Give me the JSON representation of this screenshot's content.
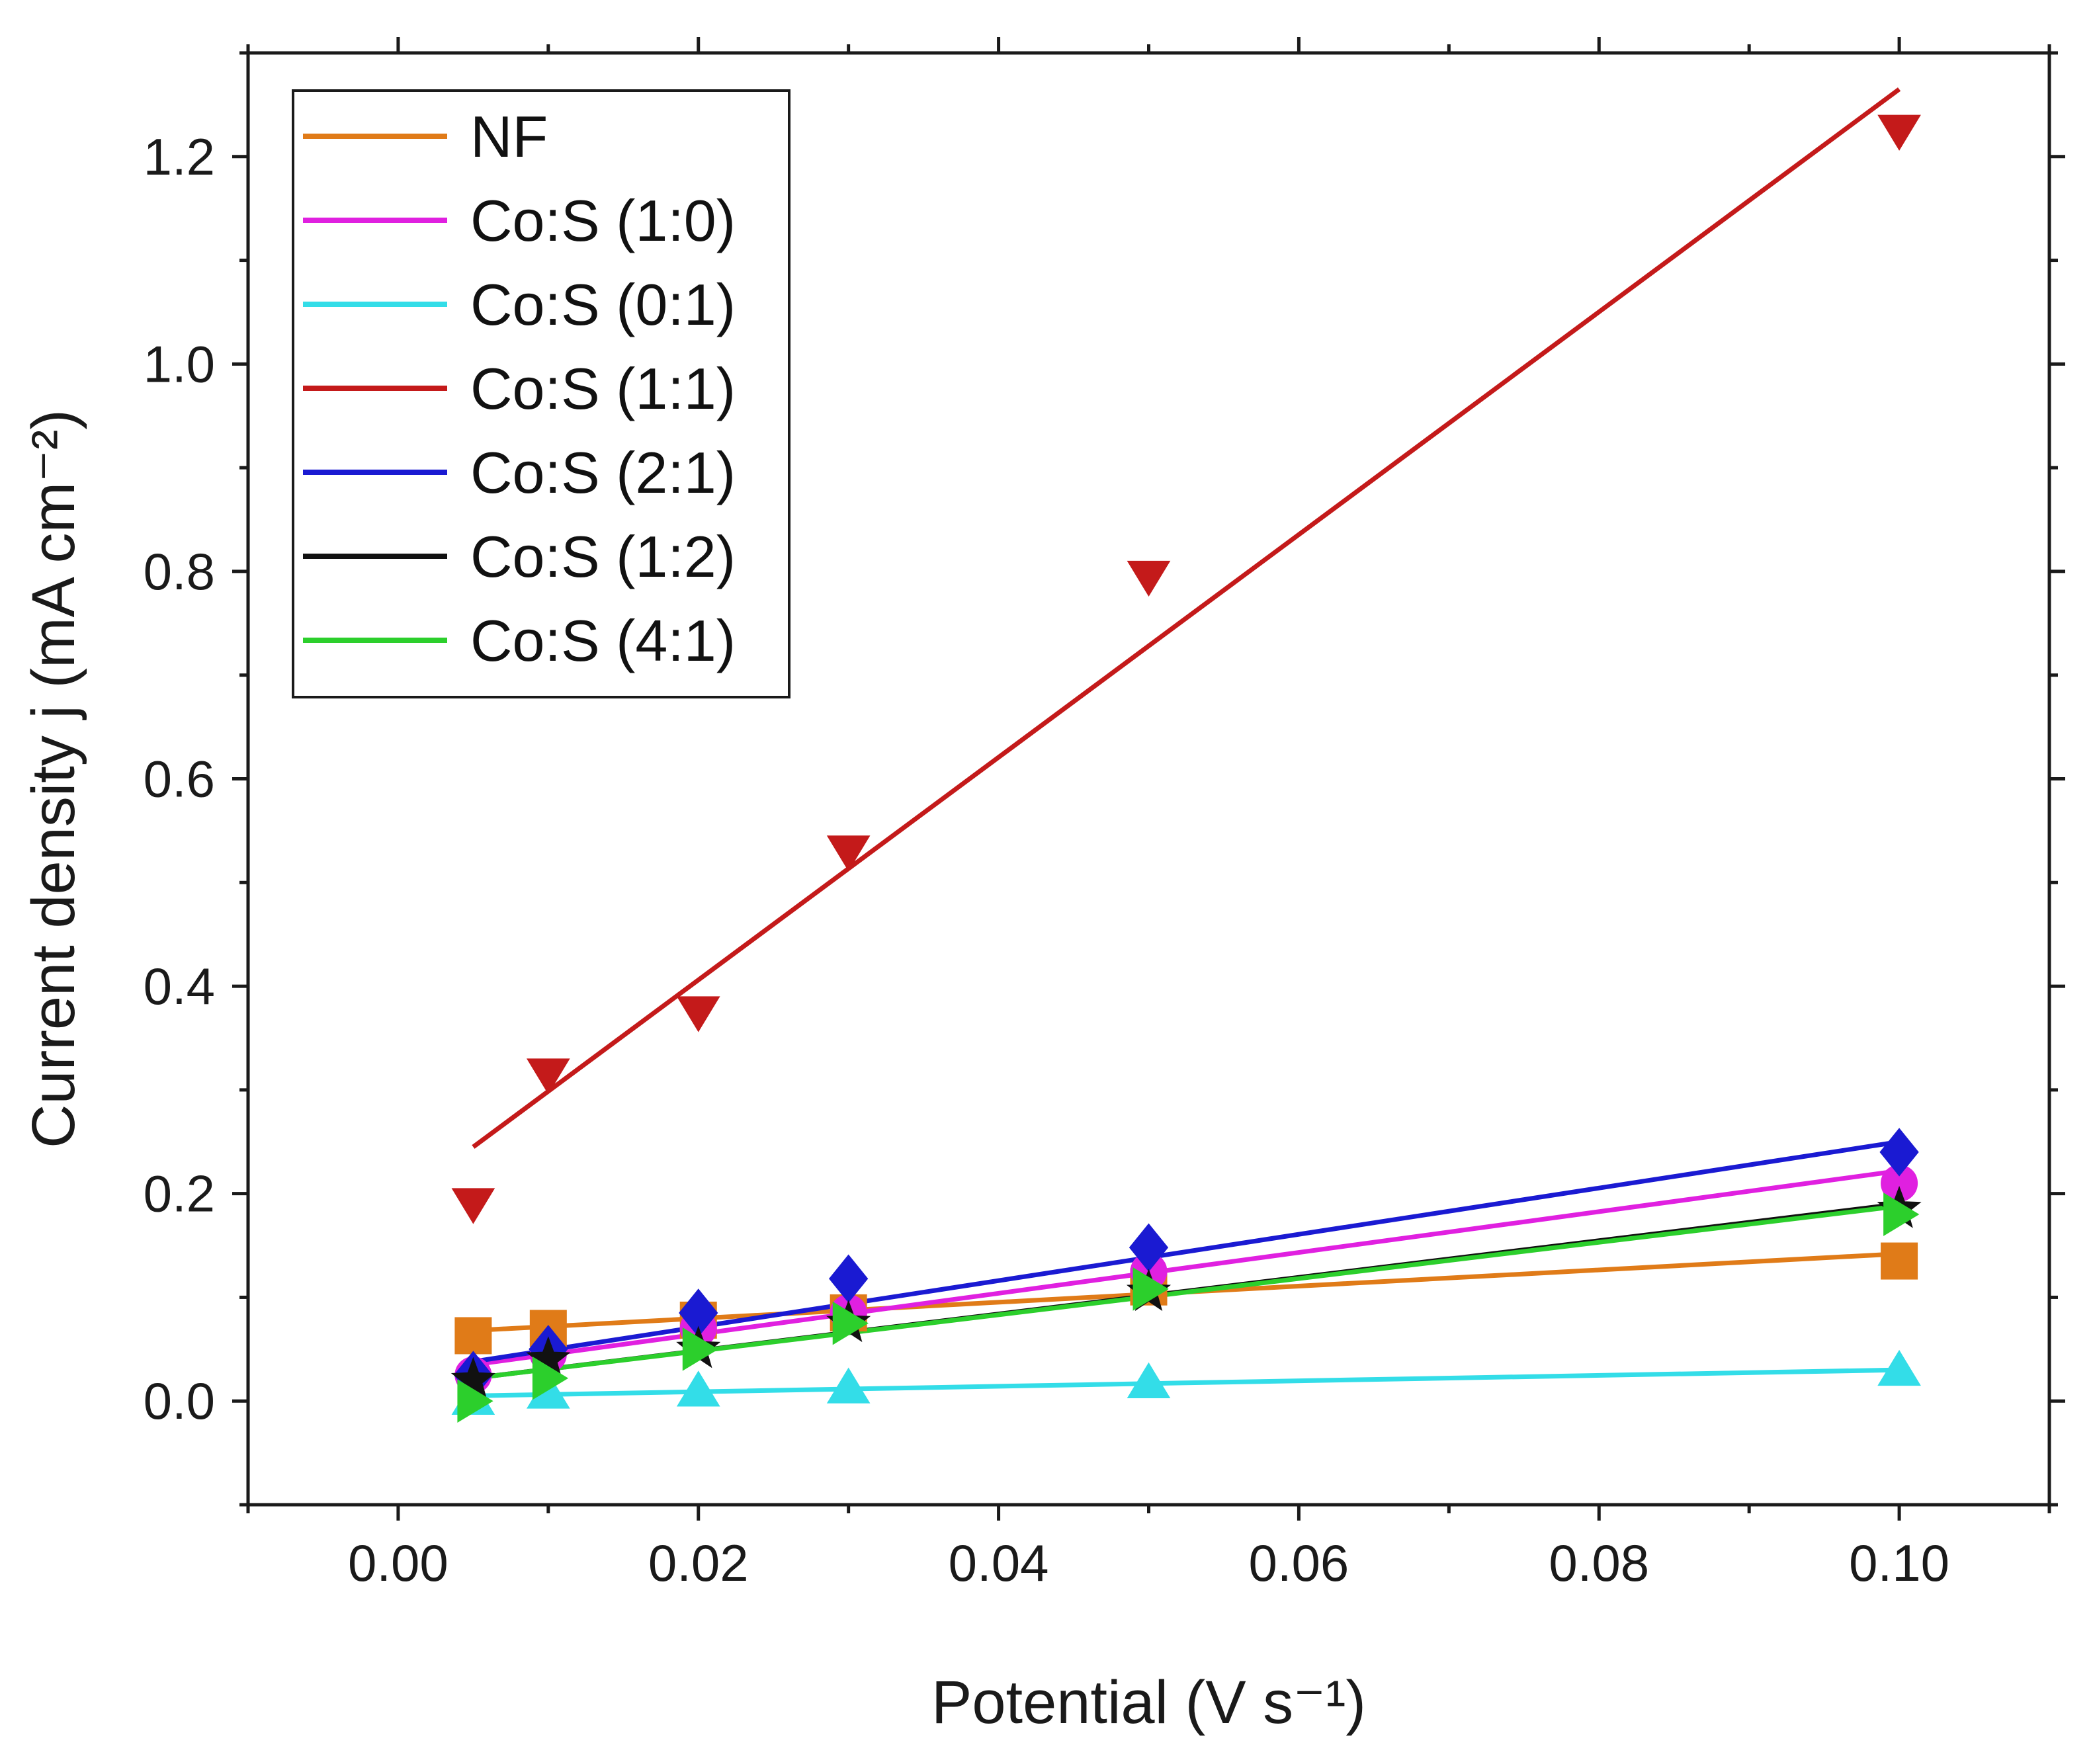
{
  "chart_data": {
    "type": "scatter",
    "title": "",
    "xlabel": "Potential (V s⁻¹)",
    "ylabel": "Current density j (mA cm⁻²)",
    "xlim": [
      -0.01,
      0.11
    ],
    "ylim": [
      -0.1,
      1.3
    ],
    "x_ticks": [
      0.0,
      0.02,
      0.04,
      0.06,
      0.08,
      0.1
    ],
    "x_tick_labels": [
      "0.00",
      "0.02",
      "0.04",
      "0.06",
      "0.08",
      "0.10"
    ],
    "y_ticks": [
      0.0,
      0.2,
      0.4,
      0.6,
      0.8,
      1.0,
      1.2
    ],
    "y_tick_labels": [
      "0.0",
      "0.2",
      "0.4",
      "0.6",
      "0.8",
      "1.0",
      "1.2"
    ],
    "grid": false,
    "legend_position": "top-left",
    "x": [
      0.005,
      0.01,
      0.02,
      0.03,
      0.05,
      0.1
    ],
    "series": [
      {
        "name": "NF",
        "color": "#e07b18",
        "marker": "square",
        "values": [
          0.063,
          0.07,
          0.078,
          0.085,
          0.11,
          0.135
        ],
        "fit": [
          0.068,
          0.142
        ]
      },
      {
        "name": "Co:S (1:0)",
        "color": "#e020e0",
        "marker": "circle",
        "values": [
          0.025,
          0.045,
          0.07,
          0.085,
          0.125,
          0.21
        ],
        "fit": [
          0.035,
          0.222
        ]
      },
      {
        "name": "Co:S (0:1)",
        "color": "#33dde8",
        "marker": "triangle-up",
        "values": [
          0.002,
          0.008,
          0.01,
          0.013,
          0.018,
          0.03
        ],
        "fit": [
          0.005,
          0.03
        ]
      },
      {
        "name": "Co:S (1:1)",
        "color": "#c41a1a",
        "marker": "triangle-down",
        "values": [
          0.19,
          0.315,
          0.375,
          0.53,
          0.795,
          1.225
        ],
        "fit": [
          0.245,
          1.265
        ]
      },
      {
        "name": "Co:S (2:1)",
        "color": "#1a1ad2",
        "marker": "diamond",
        "values": [
          0.025,
          0.05,
          0.085,
          0.118,
          0.148,
          0.24
        ],
        "fit": [
          0.038,
          0.25
        ]
      },
      {
        "name": "Co:S (1:2)",
        "color": "#111111",
        "marker": "star",
        "values": [
          0.02,
          0.04,
          0.05,
          0.075,
          0.105,
          0.185
        ],
        "fit": [
          0.022,
          0.19
        ]
      },
      {
        "name": "Co:S (4:1)",
        "color": "#2ccf2c",
        "marker": "triangle-right",
        "values": [
          0.0,
          0.022,
          0.05,
          0.075,
          0.108,
          0.18
        ],
        "fit": [
          0.022,
          0.188
        ]
      }
    ]
  }
}
